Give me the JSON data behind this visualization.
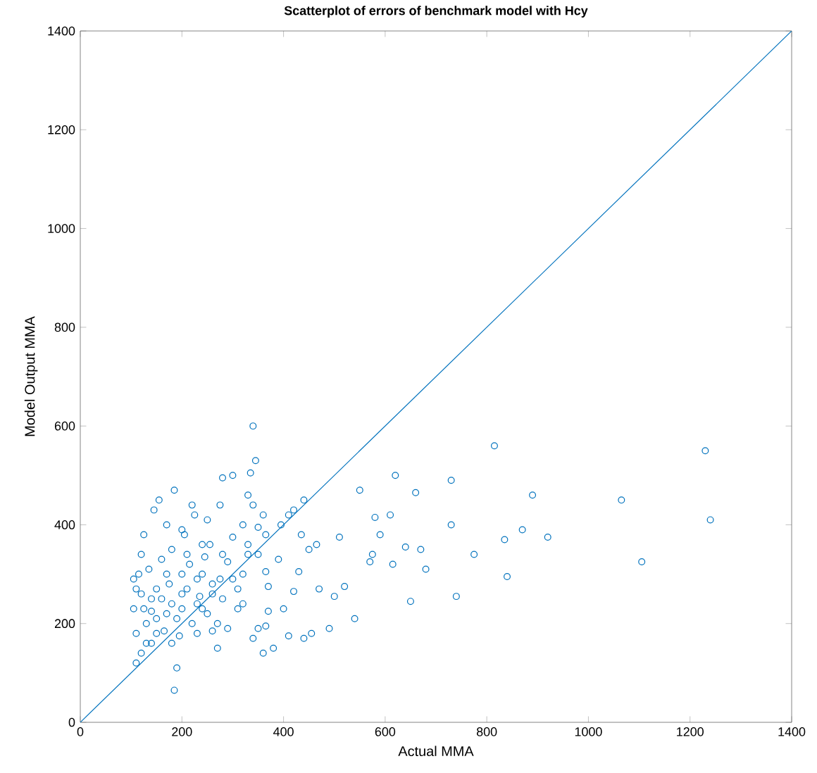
{
  "chart_data": {
    "type": "scatter",
    "title": "Scatterplot of errors of benchmark model with Hcy",
    "xlabel": "Actual MMA",
    "ylabel": "Model Output MMA",
    "xlim": [
      0,
      1400
    ],
    "ylim": [
      0,
      1400
    ],
    "xticks": [
      0,
      200,
      400,
      600,
      800,
      1000,
      1200,
      1400
    ],
    "yticks": [
      0,
      200,
      400,
      600,
      800,
      1000,
      1200,
      1400
    ],
    "grid": false,
    "marker": "circle",
    "series": [
      {
        "color": "#0072bd",
        "x": [
          1230,
          1240,
          1105,
          1065,
          920,
          890,
          870,
          840,
          835,
          815,
          775,
          740,
          730,
          730,
          680,
          670,
          660,
          650,
          640,
          620,
          610,
          615,
          590,
          580,
          575,
          570,
          550,
          540,
          520,
          510,
          500,
          490,
          470,
          465,
          455,
          450,
          440,
          430,
          435,
          440,
          420,
          420,
          410,
          400,
          410,
          395,
          390,
          380,
          370,
          370,
          365,
          360,
          365,
          365,
          360,
          350,
          340,
          345,
          335,
          330,
          340,
          330,
          320,
          320,
          310,
          310,
          300,
          300,
          290,
          280,
          275,
          275,
          270,
          270,
          260,
          255,
          250,
          245,
          240,
          240,
          235,
          230,
          225,
          220,
          215,
          210,
          205,
          200,
          200,
          195,
          190,
          185,
          185,
          180,
          175,
          170,
          170,
          165,
          160,
          155,
          150,
          145,
          140,
          140,
          135,
          130,
          125,
          120,
          120,
          115,
          110,
          110,
          105,
          105,
          120,
          130,
          150,
          160,
          180,
          200,
          220,
          230,
          250,
          260,
          280,
          290,
          300,
          320,
          340,
          350,
          140,
          170,
          190,
          210,
          240,
          260,
          280,
          180,
          200,
          230,
          330,
          350,
          110,
          125,
          150
        ],
        "values": [
          550,
          410,
          325,
          450,
          375,
          460,
          390,
          295,
          370,
          560,
          340,
          255,
          490,
          400,
          310,
          350,
          465,
          245,
          355,
          500,
          420,
          320,
          380,
          415,
          340,
          325,
          470,
          210,
          275,
          375,
          255,
          190,
          270,
          360,
          180,
          350,
          170,
          305,
          380,
          450,
          430,
          265,
          175,
          230,
          420,
          400,
          330,
          150,
          275,
          225,
          195,
          140,
          305,
          380,
          420,
          395,
          600,
          530,
          505,
          460,
          440,
          340,
          400,
          300,
          270,
          230,
          500,
          375,
          325,
          495,
          440,
          290,
          150,
          200,
          260,
          360,
          410,
          335,
          300,
          230,
          255,
          180,
          420,
          440,
          320,
          270,
          380,
          230,
          300,
          175,
          110,
          65,
          470,
          350,
          280,
          400,
          220,
          185,
          330,
          450,
          270,
          430,
          225,
          160,
          310,
          200,
          380,
          260,
          140,
          300,
          180,
          120,
          230,
          290,
          340,
          160,
          210,
          250,
          240,
          260,
          200,
          240,
          220,
          185,
          250,
          190,
          290,
          240,
          170,
          190,
          250,
          300,
          210,
          340,
          360,
          280,
          340,
          160,
          390,
          290,
          360,
          340,
          270,
          230,
          180
        ]
      },
      {
        "type": "line",
        "color": "#0072bd",
        "marker": "none",
        "x": [
          0,
          1400
        ],
        "values": [
          0,
          1400
        ]
      }
    ]
  }
}
